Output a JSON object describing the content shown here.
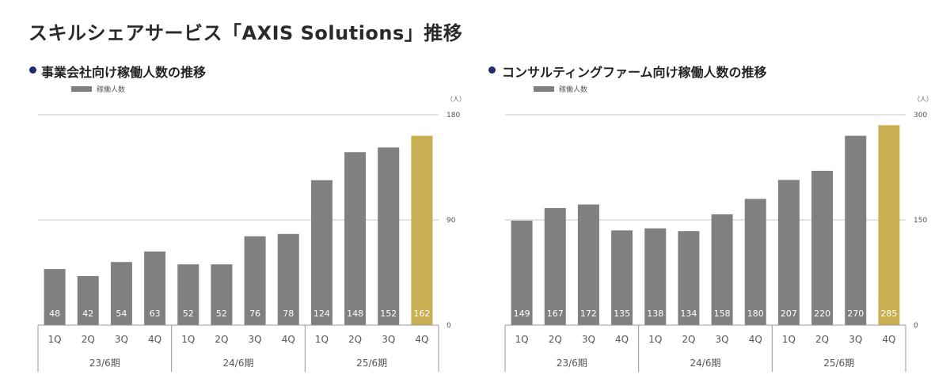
{
  "page": {
    "title": "スキルシェアサービス「AXIS Solutions」推移"
  },
  "colors": {
    "bar": "#808080",
    "highlight": "#c9ae52",
    "axis": "#999999",
    "grid": "#c8c8c8",
    "bullet": "#1f2d6e"
  },
  "chart_data": [
    {
      "type": "bar",
      "title": "事業会社向け稼働人数の推移",
      "legend": "稼働人数",
      "unit": "（人）",
      "categories": [
        "1Q",
        "2Q",
        "3Q",
        "4Q",
        "1Q",
        "2Q",
        "3Q",
        "4Q",
        "1Q",
        "2Q",
        "3Q",
        "4Q"
      ],
      "groups": [
        "23/6期",
        "24/6期",
        "25/6期"
      ],
      "series": [
        {
          "name": "稼働人数",
          "values": [
            48,
            42,
            54,
            63,
            52,
            52,
            76,
            78,
            124,
            148,
            152,
            162
          ]
        }
      ],
      "highlight_index": 11,
      "ylim": [
        0,
        180
      ],
      "yticks": [
        0,
        90,
        180
      ],
      "grid": true
    },
    {
      "type": "bar",
      "title": "コンサルティングファーム向け稼働人数の推移",
      "legend": "稼働人数",
      "unit": "（人）",
      "categories": [
        "1Q",
        "2Q",
        "3Q",
        "4Q",
        "1Q",
        "2Q",
        "3Q",
        "4Q",
        "1Q",
        "2Q",
        "3Q",
        "4Q"
      ],
      "groups": [
        "23/6期",
        "24/6期",
        "25/6期"
      ],
      "series": [
        {
          "name": "稼働人数",
          "values": [
            149,
            167,
            172,
            135,
            138,
            134,
            158,
            180,
            207,
            220,
            270,
            285
          ]
        }
      ],
      "highlight_index": 11,
      "ylim": [
        0,
        300
      ],
      "yticks": [
        0,
        150,
        300
      ],
      "grid": true
    }
  ]
}
